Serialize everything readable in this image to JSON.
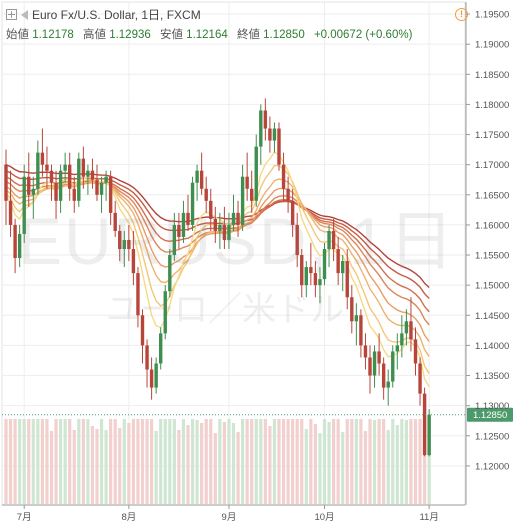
{
  "header": {
    "symbol_title": "Euro Fx/U.S. Dollar, 1日, FXCM",
    "open_label": "始値",
    "open_value": "1.12178",
    "high_label": "高値",
    "high_value": "1.12936",
    "low_label": "安値",
    "low_value": "1.12164",
    "close_label": "終値",
    "close_value": "1.12850",
    "change": "+0.00672 (+0.60%)",
    "warning_glyph": "!"
  },
  "watermark": {
    "main": "EURUSD, 1日",
    "sub": "ユーロ／米ドル"
  },
  "colors": {
    "up": "#3e8f4f",
    "down": "#b7453a",
    "volume_up": "#cfe6d3",
    "volume_down": "#f1d0cd",
    "price_line": "#5a9a73",
    "price_label_bg": "#4c9a6c"
  },
  "chart_data": {
    "type": "candlestick",
    "symbol": "EURUSD",
    "interval": "1D",
    "ylim": [
      1.1165,
      1.197
    ],
    "y_ticks": [
      "1.19500",
      "1.19000",
      "1.18500",
      "1.18000",
      "1.17500",
      "1.17000",
      "1.16500",
      "1.16000",
      "1.15500",
      "1.15000",
      "1.14500",
      "1.14000",
      "1.13500",
      "1.13000",
      "1.12500",
      "1.12000"
    ],
    "last_price": 1.1285,
    "last_price_label": "1.12850",
    "x_labels": [
      {
        "label": "7月",
        "index": 4
      },
      {
        "label": "8月",
        "index": 27
      },
      {
        "label": "9月",
        "index": 49
      },
      {
        "label": "10月",
        "index": 70
      },
      {
        "label": "11月",
        "index": 93
      }
    ],
    "ohlc": [
      [
        1.17,
        1.1725,
        1.16,
        1.164
      ],
      [
        1.164,
        1.169,
        1.158,
        1.16
      ],
      [
        1.16,
        1.161,
        1.152,
        1.1545
      ],
      [
        1.1545,
        1.16,
        1.153,
        1.1585
      ],
      [
        1.1585,
        1.17,
        1.157,
        1.168
      ],
      [
        1.168,
        1.172,
        1.163,
        1.165
      ],
      [
        1.165,
        1.168,
        1.161,
        1.166
      ],
      [
        1.166,
        1.174,
        1.165,
        1.172
      ],
      [
        1.172,
        1.176,
        1.168,
        1.17
      ],
      [
        1.17,
        1.173,
        1.166,
        1.169
      ],
      [
        1.169,
        1.17,
        1.164,
        1.167
      ],
      [
        1.167,
        1.169,
        1.161,
        1.164
      ],
      [
        1.164,
        1.17,
        1.162,
        1.169
      ],
      [
        1.169,
        1.172,
        1.167,
        1.17
      ],
      [
        1.17,
        1.172,
        1.164,
        1.166
      ],
      [
        1.166,
        1.168,
        1.162,
        1.164
      ],
      [
        1.164,
        1.172,
        1.163,
        1.171
      ],
      [
        1.171,
        1.173,
        1.166,
        1.168
      ],
      [
        1.168,
        1.17,
        1.165,
        1.169
      ],
      [
        1.169,
        1.171,
        1.166,
        1.1675
      ],
      [
        1.1675,
        1.17,
        1.164,
        1.165
      ],
      [
        1.165,
        1.168,
        1.162,
        1.167
      ],
      [
        1.167,
        1.169,
        1.164,
        1.168
      ],
      [
        1.168,
        1.169,
        1.16,
        1.162
      ],
      [
        1.162,
        1.164,
        1.158,
        1.159
      ],
      [
        1.159,
        1.16,
        1.154,
        1.156
      ],
      [
        1.156,
        1.159,
        1.153,
        1.1575
      ],
      [
        1.1575,
        1.16,
        1.154,
        1.156
      ],
      [
        1.156,
        1.159,
        1.15,
        1.152
      ],
      [
        1.152,
        1.153,
        1.143,
        1.145
      ],
      [
        1.145,
        1.146,
        1.137,
        1.14
      ],
      [
        1.14,
        1.141,
        1.133,
        1.136
      ],
      [
        1.136,
        1.138,
        1.131,
        1.133
      ],
      [
        1.133,
        1.138,
        1.132,
        1.137
      ],
      [
        1.137,
        1.143,
        1.136,
        1.142
      ],
      [
        1.142,
        1.15,
        1.141,
        1.149
      ],
      [
        1.149,
        1.156,
        1.148,
        1.155
      ],
      [
        1.155,
        1.162,
        1.154,
        1.16
      ],
      [
        1.16,
        1.162,
        1.156,
        1.158
      ],
      [
        1.158,
        1.164,
        1.157,
        1.162
      ],
      [
        1.162,
        1.165,
        1.159,
        1.16
      ],
      [
        1.16,
        1.168,
        1.159,
        1.167
      ],
      [
        1.167,
        1.17,
        1.164,
        1.169
      ],
      [
        1.169,
        1.172,
        1.165,
        1.166
      ],
      [
        1.166,
        1.168,
        1.162,
        1.164
      ],
      [
        1.164,
        1.166,
        1.159,
        1.161
      ],
      [
        1.161,
        1.163,
        1.157,
        1.159
      ],
      [
        1.159,
        1.162,
        1.156,
        1.16
      ],
      [
        1.16,
        1.163,
        1.156,
        1.1575
      ],
      [
        1.1575,
        1.162,
        1.156,
        1.16
      ],
      [
        1.16,
        1.165,
        1.159,
        1.162
      ],
      [
        1.162,
        1.164,
        1.158,
        1.16
      ],
      [
        1.16,
        1.17,
        1.159,
        1.168
      ],
      [
        1.168,
        1.172,
        1.164,
        1.166
      ],
      [
        1.166,
        1.169,
        1.162,
        1.164
      ],
      [
        1.164,
        1.175,
        1.163,
        1.173
      ],
      [
        1.173,
        1.18,
        1.17,
        1.179
      ],
      [
        1.179,
        1.181,
        1.174,
        1.176
      ],
      [
        1.176,
        1.178,
        1.172,
        1.174
      ],
      [
        1.174,
        1.177,
        1.172,
        1.176
      ],
      [
        1.176,
        1.177,
        1.169,
        1.17
      ],
      [
        1.17,
        1.172,
        1.164,
        1.166
      ],
      [
        1.166,
        1.168,
        1.162,
        1.164
      ],
      [
        1.164,
        1.166,
        1.158,
        1.16
      ],
      [
        1.16,
        1.162,
        1.153,
        1.155
      ],
      [
        1.155,
        1.156,
        1.148,
        1.15
      ],
      [
        1.15,
        1.154,
        1.148,
        1.153
      ],
      [
        1.153,
        1.157,
        1.15,
        1.152
      ],
      [
        1.152,
        1.154,
        1.148,
        1.15
      ],
      [
        1.15,
        1.153,
        1.147,
        1.151
      ],
      [
        1.151,
        1.157,
        1.15,
        1.156
      ],
      [
        1.156,
        1.16,
        1.153,
        1.159
      ],
      [
        1.159,
        1.161,
        1.154,
        1.156
      ],
      [
        1.156,
        1.158,
        1.15,
        1.152
      ],
      [
        1.152,
        1.155,
        1.149,
        1.154
      ],
      [
        1.154,
        1.156,
        1.146,
        1.148
      ],
      [
        1.148,
        1.15,
        1.142,
        1.144
      ],
      [
        1.144,
        1.147,
        1.14,
        1.145
      ],
      [
        1.145,
        1.146,
        1.138,
        1.14
      ],
      [
        1.14,
        1.142,
        1.136,
        1.138
      ],
      [
        1.138,
        1.14,
        1.132,
        1.135
      ],
      [
        1.135,
        1.14,
        1.133,
        1.139
      ],
      [
        1.139,
        1.142,
        1.135,
        1.137
      ],
      [
        1.137,
        1.138,
        1.131,
        1.133
      ],
      [
        1.133,
        1.136,
        1.13,
        1.134
      ],
      [
        1.134,
        1.14,
        1.133,
        1.139
      ],
      [
        1.139,
        1.142,
        1.136,
        1.14
      ],
      [
        1.14,
        1.145,
        1.138,
        1.142
      ],
      [
        1.142,
        1.146,
        1.14,
        1.144
      ],
      [
        1.144,
        1.148,
        1.139,
        1.141
      ],
      [
        1.141,
        1.143,
        1.135,
        1.137
      ],
      [
        1.137,
        1.138,
        1.13,
        1.132
      ],
      [
        1.132,
        1.133,
        1.1216,
        1.1218
      ],
      [
        1.1218,
        1.1294,
        1.1216,
        1.1285
      ]
    ],
    "ema_ribbon": {
      "colors": [
        "#b4453a",
        "#c45a44",
        "#d26f4f",
        "#de865b",
        "#e99d67",
        "#efb36f",
        "#f3c77a",
        "#f6d988"
      ],
      "periods": [
        60,
        50,
        40,
        32,
        24,
        18,
        12,
        8
      ]
    }
  }
}
